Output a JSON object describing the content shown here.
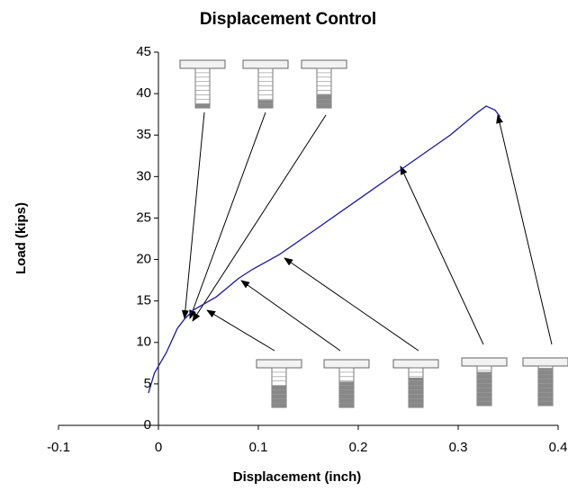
{
  "chart_data": {
    "type": "line",
    "title": "Displacement Control",
    "x_label": "Displacement (inch)",
    "y_label": "Load (kips)",
    "x": [
      -0.01,
      -0.004,
      0.008,
      0.019,
      0.026,
      0.035,
      0.058,
      0.08,
      0.094,
      0.121,
      0.157,
      0.202,
      0.247,
      0.292,
      0.319,
      0.328,
      0.337,
      0.342
    ],
    "values": [
      3.9,
      6.3,
      8.8,
      11.7,
      12.8,
      13.9,
      15.5,
      17.7,
      18.8,
      20.6,
      23.6,
      27.4,
      31.2,
      35,
      37.7,
      38.5,
      38,
      37.2
    ],
    "color": "#1a1a9c",
    "xlim": [
      -0.1,
      0.4
    ],
    "xticks": [
      -0.1,
      0,
      0.1,
      0.2,
      0.3,
      0.4
    ],
    "ylim": [
      0,
      45
    ],
    "yticks": [
      0,
      5,
      10,
      15,
      20,
      25,
      30,
      35,
      40,
      45
    ],
    "grid": false
  }
}
